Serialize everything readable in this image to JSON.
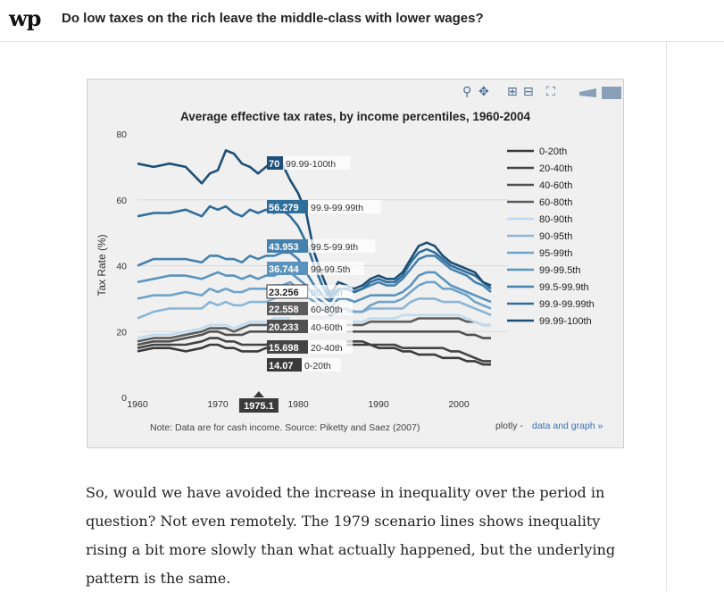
{
  "header": {
    "logo": "wp",
    "headline": "Do low taxes on the rich leave the middle-class with lower wages?"
  },
  "toolbar": {
    "zoom_icon": "zoom-icon",
    "pan_icon": "pan-icon",
    "zoom_in_icon": "zoom-in-icon",
    "zoom_out_icon": "zoom-out-icon",
    "autoscale_icon": "autoscale-icon",
    "hover_icon": "hover-tag-icon",
    "compare_icon": "compare-icon"
  },
  "chart_data": {
    "type": "line",
    "title": "Average effective tax rates, by income percentiles, 1960-2004",
    "ylabel": "Tax Rate (%)",
    "xlabel": "",
    "xlim": [
      1960,
      2004
    ],
    "ylim": [
      0,
      80
    ],
    "xticks": [
      "1960",
      "1970",
      "1980",
      "1990",
      "2000"
    ],
    "yticks": [
      "0",
      "20",
      "40",
      "60",
      "80"
    ],
    "grid": "horizontal",
    "legend_position": "right",
    "hover_x": "1975.1",
    "note": "Note: Data are for cash income. Source: Piketty and Saez (2007)",
    "link_brand": "plotly - ",
    "link_text": "data and graph »",
    "x": [
      1960,
      1962,
      1964,
      1966,
      1968,
      1969,
      1970,
      1971,
      1972,
      1973,
      1974,
      1975,
      1976,
      1977,
      1978,
      1979,
      1980,
      1981,
      1982,
      1983,
      1984,
      1985,
      1986,
      1987,
      1988,
      1989,
      1990,
      1991,
      1992,
      1993,
      1994,
      1995,
      1996,
      1997,
      1998,
      1999,
      2000,
      2001,
      2002,
      2003,
      2004
    ],
    "series": [
      {
        "name": "0-20th",
        "color": "#3a3a3a",
        "hover_value": "14.07",
        "values": [
          14,
          15,
          15,
          14,
          15,
          16,
          16,
          15,
          15,
          14,
          14,
          14,
          15,
          15,
          16,
          16,
          null,
          null,
          null,
          null,
          null,
          null,
          16,
          16,
          16,
          16,
          15,
          15,
          15,
          14,
          14,
          13,
          13,
          13,
          12,
          12,
          12,
          11,
          11,
          10,
          10
        ]
      },
      {
        "name": "20-40th",
        "color": "#444444",
        "hover_value": "15.698",
        "values": [
          15,
          16,
          16,
          16,
          17,
          18,
          18,
          17,
          17,
          16,
          16,
          16,
          16,
          17,
          17,
          17,
          null,
          null,
          null,
          null,
          null,
          null,
          17,
          17,
          17,
          16,
          16,
          16,
          16,
          15,
          15,
          15,
          15,
          15,
          15,
          14,
          14,
          13,
          12,
          11,
          11
        ]
      },
      {
        "name": "40-60th",
        "color": "#505050",
        "hover_value": "20.233",
        "values": [
          16,
          17,
          17,
          18,
          19,
          20,
          20,
          19,
          19,
          19,
          20,
          20,
          20,
          21,
          21,
          21,
          null,
          null,
          null,
          null,
          null,
          null,
          20,
          20,
          20,
          20,
          20,
          20,
          20,
          20,
          20,
          20,
          20,
          20,
          20,
          20,
          20,
          19,
          19,
          18,
          18
        ]
      },
      {
        "name": "60-80th",
        "color": "#5c5c5c",
        "hover_value": "22.558",
        "values": [
          17,
          18,
          18,
          19,
          20,
          21,
          21,
          21,
          20,
          21,
          22,
          22,
          22,
          23,
          23,
          23,
          null,
          null,
          null,
          null,
          null,
          null,
          22,
          22,
          22,
          23,
          23,
          23,
          23,
          23,
          23,
          24,
          24,
          24,
          24,
          24,
          24,
          23,
          23,
          22,
          22
        ]
      },
      {
        "name": "80-90th",
        "color": "#bfdcf0",
        "hover_value": "23.256",
        "values": [
          18,
          19,
          19,
          20,
          21,
          22,
          22,
          22,
          21,
          22,
          23,
          23,
          23,
          24,
          24,
          24,
          null,
          null,
          null,
          null,
          null,
          null,
          23,
          23,
          23,
          24,
          24,
          24,
          24,
          25,
          25,
          25,
          25,
          25,
          25,
          25,
          25,
          24,
          23,
          22,
          22
        ]
      },
      {
        "name": "90-95th",
        "color": "#8ab6d8",
        "hover_value": "",
        "values": [
          24,
          26,
          27,
          27,
          27,
          29,
          28,
          29,
          28,
          28,
          29,
          29,
          29,
          30,
          31,
          31,
          null,
          null,
          null,
          null,
          null,
          null,
          26,
          26,
          26,
          27,
          27,
          27,
          27,
          27,
          29,
          30,
          30,
          30,
          29,
          29,
          29,
          28,
          27,
          26,
          25
        ]
      },
      {
        "name": "95-99th",
        "color": "#6fa3c9",
        "hover_value": "",
        "values": [
          30,
          31,
          31,
          32,
          31,
          33,
          32,
          33,
          32,
          32,
          33,
          33,
          33,
          34,
          34,
          35,
          33,
          31,
          29,
          27,
          25,
          26,
          27,
          26,
          26,
          28,
          29,
          29,
          29,
          30,
          32,
          34,
          35,
          35,
          33,
          33,
          32,
          31,
          29,
          28,
          27
        ]
      },
      {
        "name": "99-99.5th",
        "color": "#5b93be",
        "hover_value": "36.744",
        "values": [
          35,
          36,
          37,
          37,
          36,
          37,
          38,
          37,
          37,
          36,
          37,
          36,
          37,
          37,
          38,
          38,
          36,
          34,
          31,
          29,
          27,
          30,
          30,
          29,
          30,
          31,
          31,
          31,
          31,
          32,
          34,
          37,
          38,
          38,
          36,
          34,
          33,
          32,
          31,
          30,
          29
        ]
      },
      {
        "name": "99.5-99.9th",
        "color": "#4681ae",
        "hover_value": "43.953",
        "values": [
          40,
          42,
          42,
          42,
          41,
          43,
          43,
          42,
          42,
          41,
          43,
          42,
          43,
          43,
          44,
          44,
          42,
          38,
          34,
          31,
          29,
          33,
          33,
          32,
          33,
          34,
          35,
          34,
          34,
          36,
          39,
          42,
          43,
          43,
          41,
          39,
          38,
          37,
          35,
          34,
          32
        ]
      },
      {
        "name": "99.9-99.99th",
        "color": "#2f6e9b",
        "hover_value": "56.279",
        "values": [
          55,
          56,
          56,
          57,
          55,
          58,
          57,
          58,
          56,
          55,
          57,
          56,
          57,
          56,
          57,
          55,
          52,
          47,
          40,
          34,
          30,
          33,
          33,
          32,
          33,
          35,
          36,
          35,
          35,
          37,
          41,
          44,
          45,
          44,
          42,
          40,
          39,
          38,
          37,
          35,
          33
        ]
      },
      {
        "name": "99.99-100th",
        "color": "#1d4f77",
        "hover_value": "70",
        "values": [
          71,
          70,
          71,
          70,
          65,
          68,
          69,
          75,
          74,
          71,
          70,
          68,
          70,
          72,
          71,
          66,
          62,
          56,
          44,
          37,
          31,
          35,
          34,
          33,
          34,
          36,
          37,
          36,
          36,
          38,
          42,
          46,
          47,
          46,
          43,
          41,
          40,
          39,
          38,
          35,
          34
        ]
      }
    ]
  },
  "article": {
    "paragraph": "So, would we have avoided the increase in inequality over the period in question? Not even remotely. The 1979 scenario lines shows inequality rising a bit more slowly than what actually happened, but the underlying pattern is the same."
  }
}
